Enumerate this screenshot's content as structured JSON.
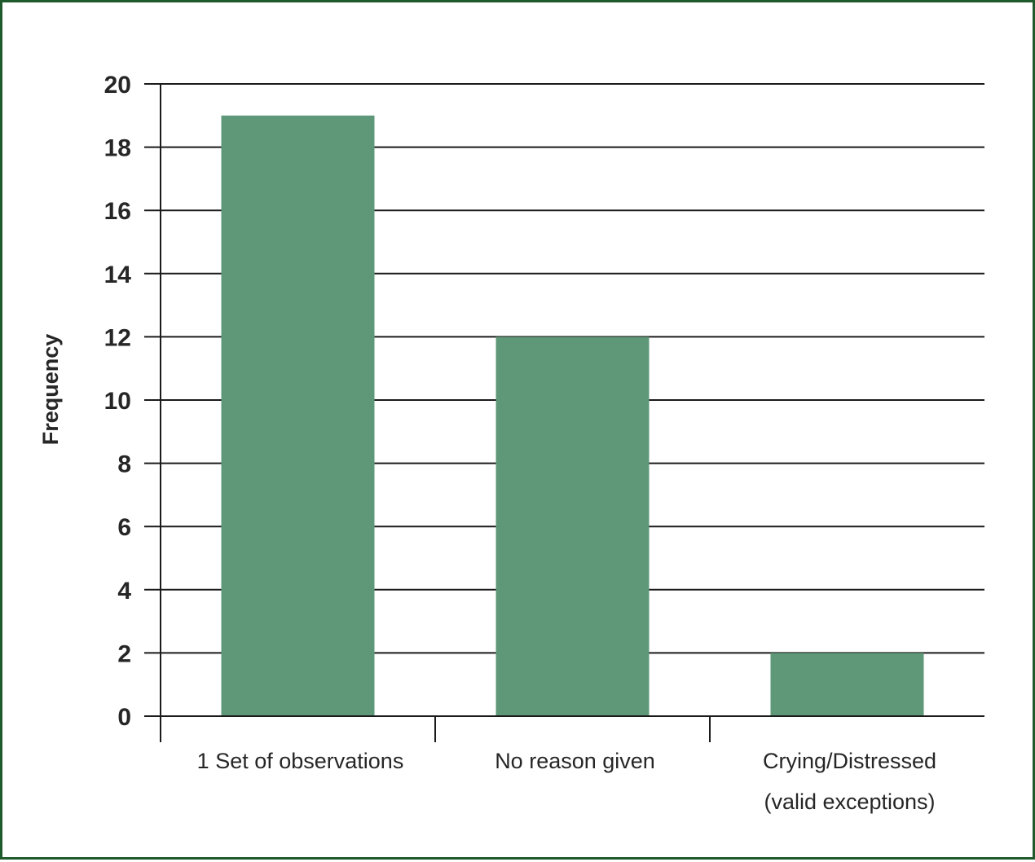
{
  "chart_data": {
    "type": "bar",
    "categories": [
      [
        "1 Set of observations"
      ],
      [
        "No reason given"
      ],
      [
        "Crying/Distressed",
        "(valid exceptions)"
      ]
    ],
    "values": [
      19,
      12,
      2
    ],
    "title": "",
    "xlabel": "",
    "ylabel": "Frequency",
    "ylim": [
      0,
      20
    ],
    "yticks": [
      0,
      2,
      4,
      6,
      8,
      10,
      12,
      14,
      16,
      18,
      20
    ],
    "grid": true,
    "bar_color": "#5f9878",
    "border_color": "#1f5a2c"
  }
}
